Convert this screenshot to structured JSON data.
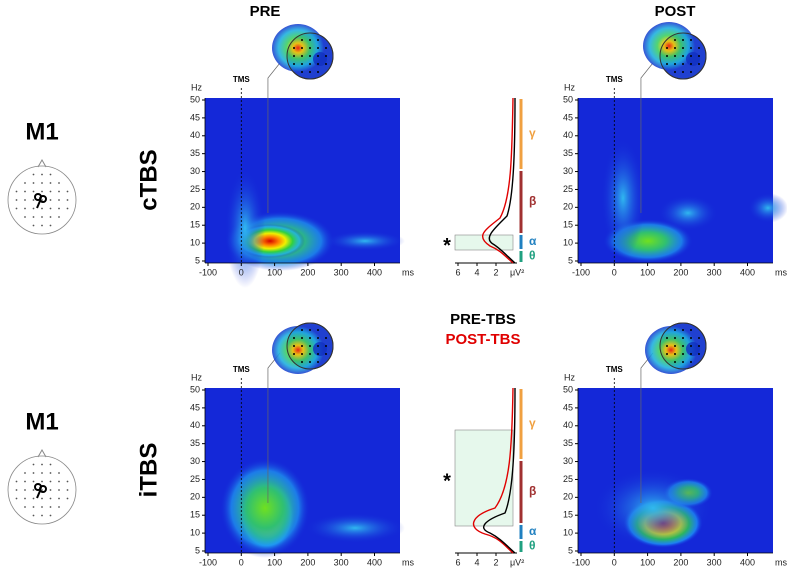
{
  "columns": {
    "pre": "PRE",
    "post": "POST"
  },
  "rows": [
    {
      "site": "M1",
      "protocol": "cTBS"
    },
    {
      "site": "M1",
      "protocol": "iTBS"
    }
  ],
  "axis": {
    "y_unit": "Hz",
    "x_unit": "ms",
    "marker": "TMS",
    "yticks": [
      5,
      10,
      15,
      20,
      25,
      30,
      35,
      40,
      45,
      50
    ],
    "xticks": [
      -100,
      0,
      100,
      200,
      300,
      400
    ]
  },
  "spectrum": {
    "xticks": [
      6,
      4,
      2
    ],
    "x_unit": "μV²",
    "bands": [
      "γ",
      "β",
      "α",
      "θ"
    ],
    "significance": "*"
  },
  "legend": {
    "pre": "PRE-TBS",
    "post": "POST-TBS"
  }
}
